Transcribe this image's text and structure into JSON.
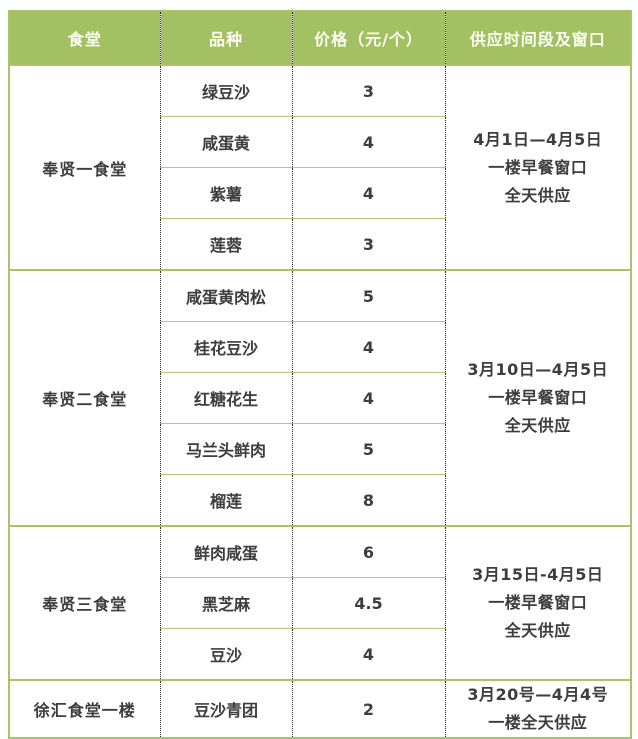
{
  "colors": {
    "header_bg": "#a3c162",
    "header_text": "#fffef5",
    "section_border": "#a8c468",
    "row_line": "#afcb78",
    "dotted_line": "#2b2b2b",
    "body_text": "#3d3d3d"
  },
  "table": {
    "headers": [
      "食堂",
      "品种",
      "价格（元/个）",
      "供应时间段及窗口"
    ],
    "sections": [
      {
        "canteen": "奉贤一食堂",
        "items": [
          {
            "name": "绿豆沙",
            "price": "3"
          },
          {
            "name": "咸蛋黄",
            "price": "4"
          },
          {
            "name": "紫薯",
            "price": "4"
          },
          {
            "name": "莲蓉",
            "price": "3"
          }
        ],
        "supply_lines": [
          "4月1日—4月5日",
          "一楼早餐窗口",
          "全天供应"
        ]
      },
      {
        "canteen": "奉贤二食堂",
        "items": [
          {
            "name": "咸蛋黄肉松",
            "price": "5"
          },
          {
            "name": "桂花豆沙",
            "price": "4"
          },
          {
            "name": "红糖花生",
            "price": "4"
          },
          {
            "name": "马兰头鲜肉",
            "price": "5"
          },
          {
            "name": "榴莲",
            "price": "8"
          }
        ],
        "supply_lines": [
          "3月10日—4月5日",
          "一楼早餐窗口",
          "全天供应"
        ]
      },
      {
        "canteen": "奉贤三食堂",
        "items": [
          {
            "name": "鲜肉咸蛋",
            "price": "6"
          },
          {
            "name": "黑芝麻",
            "price": "4.5"
          },
          {
            "name": "豆沙",
            "price": "4"
          }
        ],
        "supply_lines": [
          "3月15日-4月5日",
          "一楼早餐窗口",
          "全天供应"
        ]
      },
      {
        "canteen": "徐汇食堂一楼",
        "items": [
          {
            "name": "豆沙青团",
            "price": "2"
          }
        ],
        "supply_lines": [
          "3月20号—4月4号",
          "一楼全天供应"
        ]
      }
    ]
  }
}
